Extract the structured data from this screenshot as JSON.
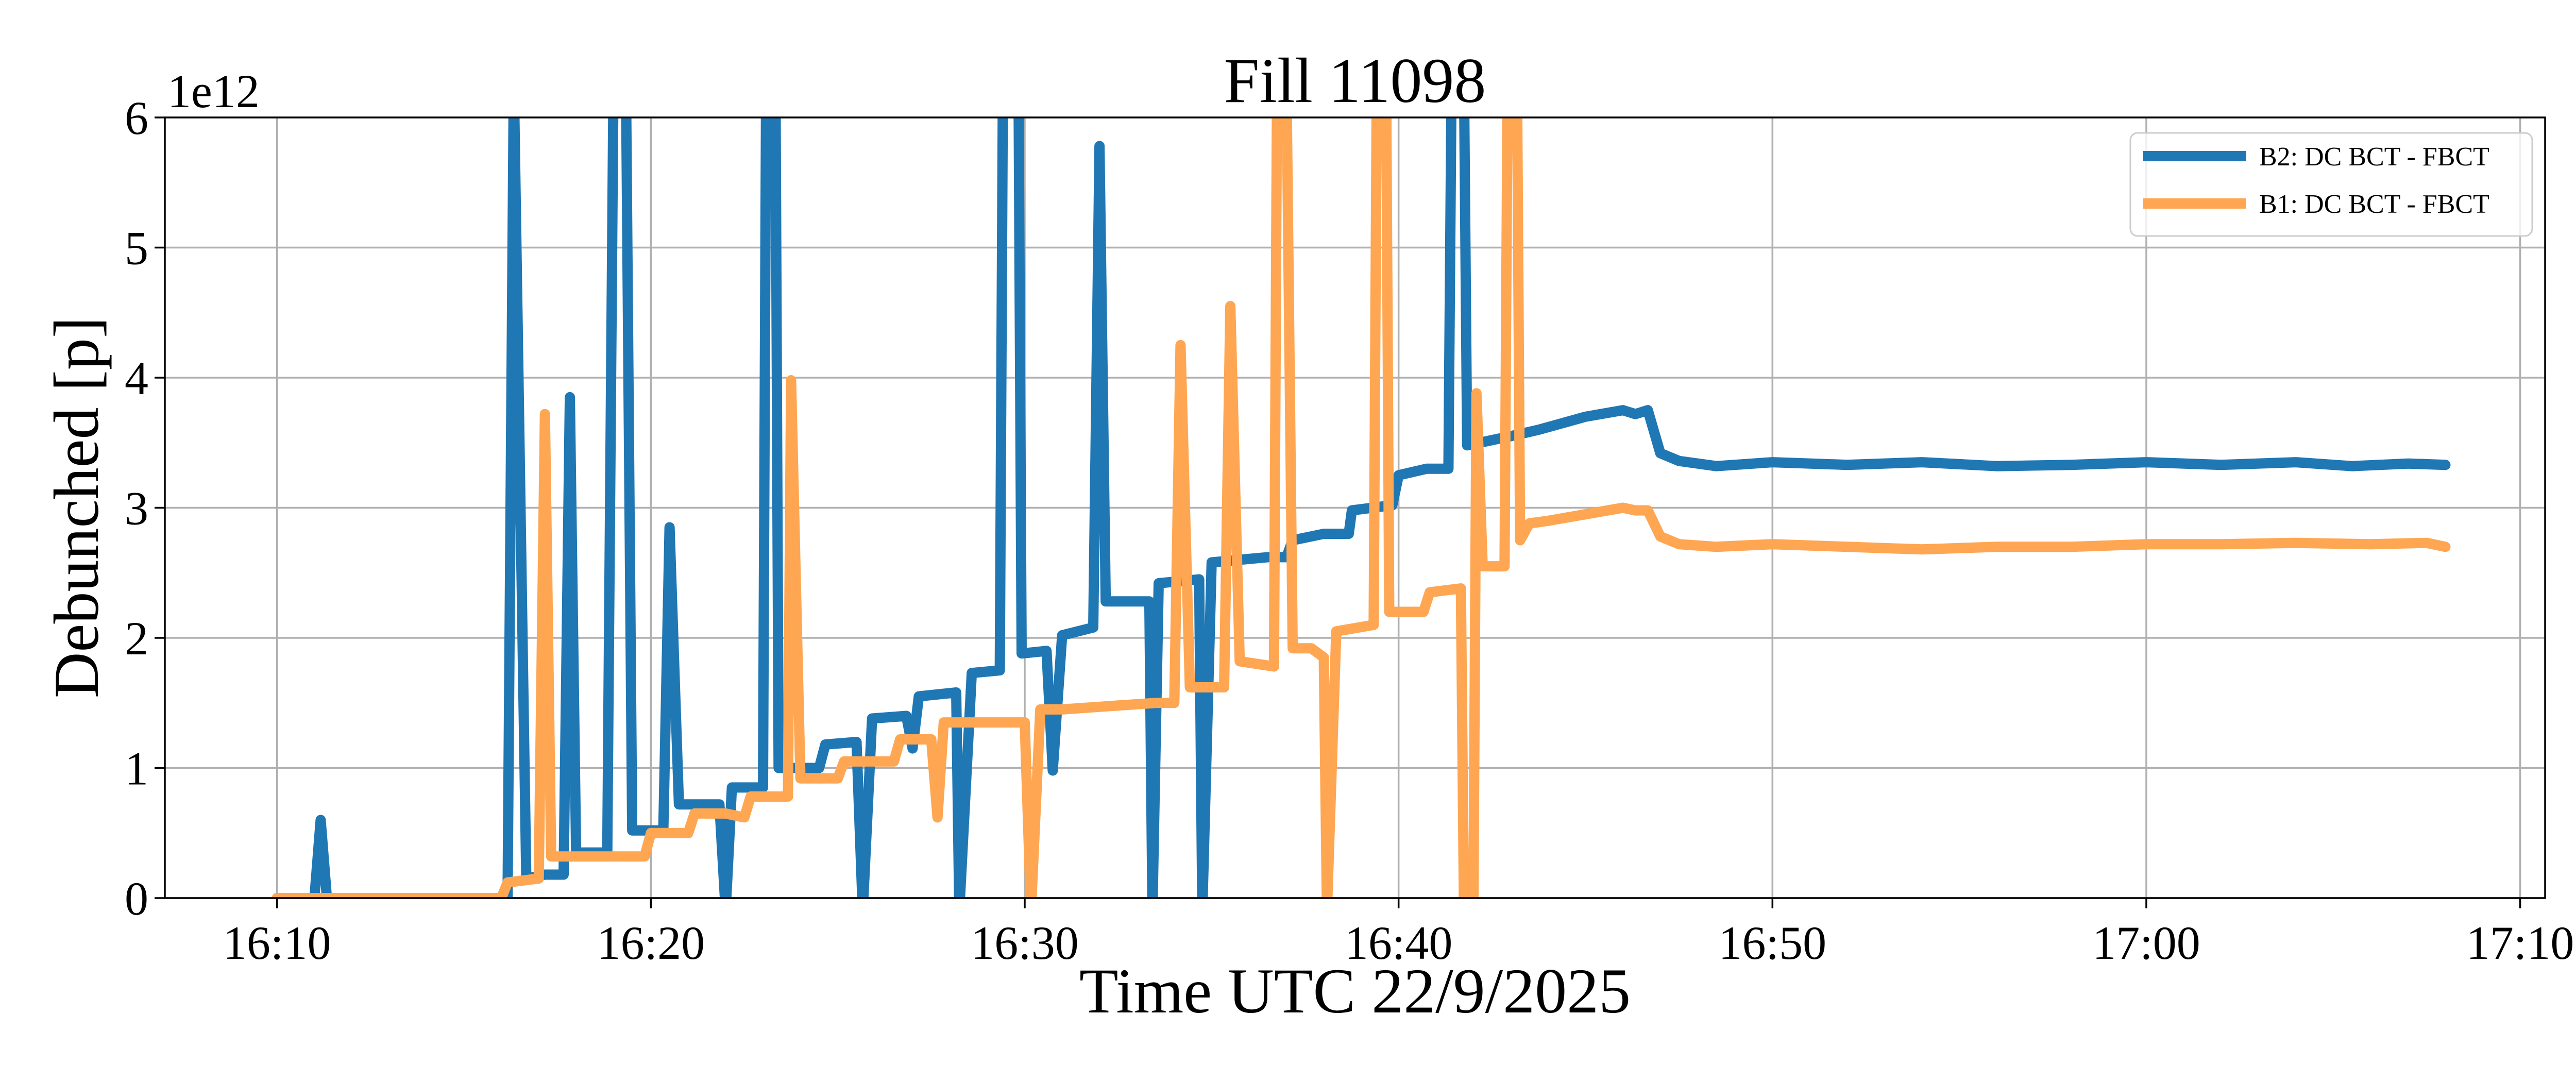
{
  "chart_data": {
    "type": "line",
    "title": "Fill 11098",
    "xlabel": "Time UTC 22/9/2025",
    "ylabel": "Debunched [p]",
    "y_offset_label": "1e12",
    "x_unit": "time HH:MM UTC",
    "xlim": [
      "16:07",
      "17:10:40"
    ],
    "ylim": [
      0,
      6
    ],
    "x_ticks": [
      "16:10",
      "16:20",
      "16:30",
      "16:40",
      "16:50",
      "17:00",
      "17:10"
    ],
    "y_ticks": [
      "0",
      "1",
      "2",
      "3",
      "4",
      "5",
      "6"
    ],
    "grid": true,
    "legend_position": "top-right",
    "series": [
      {
        "name": "B2: DC BCT - FBCT",
        "color": "#1f77b4",
        "points": [
          [
            "16:10:00",
            0
          ],
          [
            "16:11:00",
            0
          ],
          [
            "16:11:10",
            0.6
          ],
          [
            "16:11:20",
            0
          ],
          [
            "16:16:10",
            0
          ],
          [
            "16:16:20",
            6.3
          ],
          [
            "16:16:40",
            0.15
          ],
          [
            "16:17:10",
            0.18
          ],
          [
            "16:17:40",
            0.18
          ],
          [
            "16:17:50",
            3.85
          ],
          [
            "16:18:00",
            0.35
          ],
          [
            "16:18:50",
            0.35
          ],
          [
            "16:19:00",
            6.3
          ],
          [
            "16:19:20",
            6.3
          ],
          [
            "16:19:30",
            0.52
          ],
          [
            "16:20:20",
            0.52
          ],
          [
            "16:20:30",
            2.85
          ],
          [
            "16:20:45",
            0.72
          ],
          [
            "16:21:30",
            0.72
          ],
          [
            "16:21:50",
            0.72
          ],
          [
            "16:22:00",
            -0.1
          ],
          [
            "16:22:10",
            0.85
          ],
          [
            "16:23:00",
            0.85
          ],
          [
            "16:23:05",
            6.3
          ],
          [
            "16:23:20",
            6.3
          ],
          [
            "16:23:25",
            1.0
          ],
          [
            "16:24:30",
            1.0
          ],
          [
            "16:24:40",
            1.18
          ],
          [
            "16:25:30",
            1.2
          ],
          [
            "16:25:40",
            -0.1
          ],
          [
            "16:25:55",
            1.38
          ],
          [
            "16:26:50",
            1.4
          ],
          [
            "16:27:00",
            1.15
          ],
          [
            "16:27:10",
            1.55
          ],
          [
            "16:28:10",
            1.58
          ],
          [
            "16:28:15",
            -0.1
          ],
          [
            "16:28:35",
            1.73
          ],
          [
            "16:29:20",
            1.75
          ],
          [
            "16:29:25",
            6.3
          ],
          [
            "16:29:50",
            6.3
          ],
          [
            "16:29:55",
            1.88
          ],
          [
            "16:30:35",
            1.9
          ],
          [
            "16:30:45",
            0.98
          ],
          [
            "16:31:00",
            2.02
          ],
          [
            "16:31:50",
            2.08
          ],
          [
            "16:32:00",
            5.78
          ],
          [
            "16:32:10",
            2.28
          ],
          [
            "16:33:20",
            2.28
          ],
          [
            "16:33:25",
            -0.1
          ],
          [
            "16:33:35",
            2.42
          ],
          [
            "16:34:40",
            2.45
          ],
          [
            "16:34:45",
            -0.1
          ],
          [
            "16:35:00",
            2.58
          ],
          [
            "16:36:30",
            2.62
          ],
          [
            "16:37:00",
            2.62
          ],
          [
            "16:37:10",
            2.75
          ],
          [
            "16:38:00",
            2.8
          ],
          [
            "16:38:40",
            2.8
          ],
          [
            "16:38:45",
            2.98
          ],
          [
            "16:39:50",
            3.02
          ],
          [
            "16:40:00",
            3.25
          ],
          [
            "16:40:45",
            3.3
          ],
          [
            "16:41:20",
            3.3
          ],
          [
            "16:41:25",
            6.3
          ],
          [
            "16:41:45",
            6.3
          ],
          [
            "16:41:50",
            3.48
          ],
          [
            "16:43:00",
            3.55
          ],
          [
            "16:43:45",
            3.6
          ],
          [
            "16:45:00",
            3.7
          ],
          [
            "16:46:00",
            3.75
          ],
          [
            "16:46:20",
            3.72
          ],
          [
            "16:46:40",
            3.75
          ],
          [
            "16:47:00",
            3.42
          ],
          [
            "16:47:30",
            3.36
          ],
          [
            "16:48:30",
            3.32
          ],
          [
            "16:50:00",
            3.35
          ],
          [
            "16:52:00",
            3.33
          ],
          [
            "16:54:00",
            3.35
          ],
          [
            "16:56:00",
            3.32
          ],
          [
            "16:58:00",
            3.33
          ],
          [
            "17:00:00",
            3.35
          ],
          [
            "17:02:00",
            3.33
          ],
          [
            "17:04:00",
            3.35
          ],
          [
            "17:05:30",
            3.32
          ],
          [
            "17:07:00",
            3.34
          ],
          [
            "17:08:00",
            3.33
          ]
        ]
      },
      {
        "name": "B1: DC BCT - FBCT",
        "color": "#fea652",
        "points": [
          [
            "16:10:00",
            0
          ],
          [
            "16:16:00",
            0
          ],
          [
            "16:16:10",
            0.12
          ],
          [
            "16:17:00",
            0.15
          ],
          [
            "16:17:10",
            3.72
          ],
          [
            "16:17:20",
            0.32
          ],
          [
            "16:18:00",
            0.32
          ],
          [
            "16:19:50",
            0.32
          ],
          [
            "16:20:00",
            0.5
          ],
          [
            "16:21:00",
            0.5
          ],
          [
            "16:21:10",
            0.65
          ],
          [
            "16:22:00",
            0.65
          ],
          [
            "16:22:30",
            0.62
          ],
          [
            "16:22:40",
            0.78
          ],
          [
            "16:23:00",
            0.78
          ],
          [
            "16:23:40",
            0.78
          ],
          [
            "16:23:45",
            3.98
          ],
          [
            "16:24:00",
            0.92
          ],
          [
            "16:25:00",
            0.92
          ],
          [
            "16:25:10",
            1.05
          ],
          [
            "16:26:30",
            1.05
          ],
          [
            "16:26:40",
            1.22
          ],
          [
            "16:27:30",
            1.22
          ],
          [
            "16:27:40",
            0.62
          ],
          [
            "16:27:50",
            1.35
          ],
          [
            "16:29:00",
            1.35
          ],
          [
            "16:30:00",
            1.35
          ],
          [
            "16:30:10",
            -0.1
          ],
          [
            "16:30:25",
            1.45
          ],
          [
            "16:31:00",
            1.45
          ],
          [
            "16:32:00",
            1.47
          ],
          [
            "16:33:30",
            1.5
          ],
          [
            "16:34:00",
            1.5
          ],
          [
            "16:34:10",
            4.25
          ],
          [
            "16:34:25",
            1.62
          ],
          [
            "16:35:20",
            1.62
          ],
          [
            "16:35:30",
            4.55
          ],
          [
            "16:35:45",
            1.82
          ],
          [
            "16:36:40",
            1.78
          ],
          [
            "16:36:45",
            6.3
          ],
          [
            "16:37:00",
            6.3
          ],
          [
            "16:37:10",
            1.92
          ],
          [
            "16:37:40",
            1.92
          ],
          [
            "16:38:00",
            1.85
          ],
          [
            "16:38:05",
            -0.1
          ],
          [
            "16:38:20",
            2.05
          ],
          [
            "16:39:20",
            2.1
          ],
          [
            "16:39:25",
            6.3
          ],
          [
            "16:39:40",
            6.3
          ],
          [
            "16:39:45",
            2.2
          ],
          [
            "16:40:40",
            2.2
          ],
          [
            "16:40:50",
            2.35
          ],
          [
            "16:41:40",
            2.38
          ],
          [
            "16:41:45",
            -0.1
          ],
          [
            "16:42:00",
            -0.1
          ],
          [
            "16:42:05",
            3.88
          ],
          [
            "16:42:15",
            2.55
          ],
          [
            "16:42:50",
            2.55
          ],
          [
            "16:42:55",
            6.3
          ],
          [
            "16:43:10",
            6.3
          ],
          [
            "16:43:15",
            2.75
          ],
          [
            "16:43:30",
            2.88
          ],
          [
            "16:44:00",
            2.9
          ],
          [
            "16:45:00",
            2.95
          ],
          [
            "16:46:00",
            3.0
          ],
          [
            "16:46:20",
            2.98
          ],
          [
            "16:46:40",
            2.98
          ],
          [
            "16:47:00",
            2.78
          ],
          [
            "16:47:30",
            2.72
          ],
          [
            "16:48:30",
            2.7
          ],
          [
            "16:50:00",
            2.72
          ],
          [
            "16:52:00",
            2.7
          ],
          [
            "16:54:00",
            2.68
          ],
          [
            "16:56:00",
            2.7
          ],
          [
            "16:58:00",
            2.7
          ],
          [
            "17:00:00",
            2.72
          ],
          [
            "17:02:00",
            2.72
          ],
          [
            "17:04:00",
            2.73
          ],
          [
            "17:06:00",
            2.72
          ],
          [
            "17:07:30",
            2.73
          ],
          [
            "17:08:00",
            2.7
          ]
        ]
      }
    ]
  }
}
